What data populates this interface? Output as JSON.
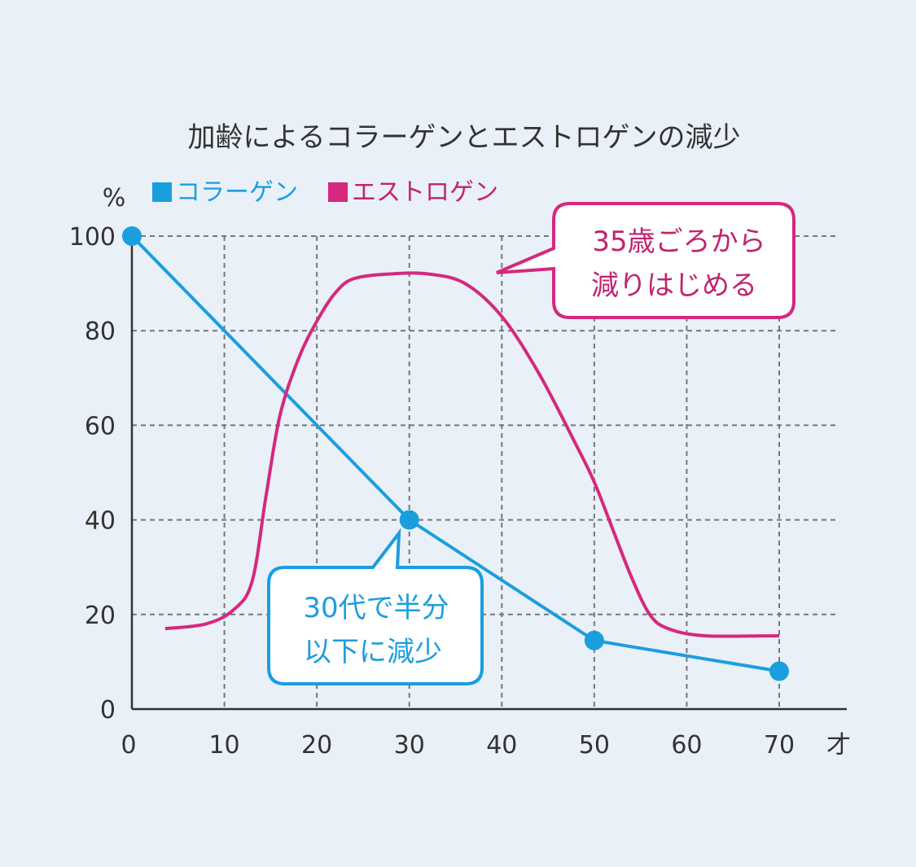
{
  "chart_data": {
    "type": "line",
    "title": "加齢によるコラーゲンとエストロゲンの減少",
    "ylabel": "%",
    "xlabel": "才",
    "xlim": [
      0,
      70
    ],
    "ylim": [
      0,
      100
    ],
    "x_ticks": [
      0,
      10,
      20,
      30,
      40,
      50,
      60,
      70
    ],
    "y_ticks": [
      0,
      20,
      40,
      60,
      80,
      100
    ],
    "grid": true,
    "legend_placement": "top-left",
    "colors": {
      "collagen": "#1b9ede",
      "estrogen": "#d5287e"
    },
    "series": [
      {
        "name": "コラーゲン",
        "key": "collagen",
        "markers": true,
        "x": [
          0,
          30,
          50,
          70
        ],
        "y": [
          100,
          40,
          14.5,
          8
        ]
      },
      {
        "name": "エストロゲン",
        "key": "estrogen",
        "markers": false,
        "smooth": true,
        "x": [
          3.6,
          8,
          11,
          13,
          14.5,
          16,
          18,
          20,
          22,
          24,
          28,
          32,
          36,
          40,
          44,
          48,
          50,
          52,
          54,
          56,
          58,
          62,
          70
        ],
        "y": [
          17,
          18,
          21,
          27,
          45,
          62,
          74,
          82,
          88,
          91,
          92,
          92,
          90,
          83,
          71,
          56,
          48,
          38,
          28,
          20,
          17,
          15.5,
          15.5
        ]
      }
    ],
    "annotations": [
      {
        "key": "estrogen",
        "lines": [
          "35歳ごろから",
          "減りはじめる"
        ]
      },
      {
        "key": "collagen",
        "lines": [
          "30代で半分",
          "以下に減少"
        ]
      }
    ]
  }
}
